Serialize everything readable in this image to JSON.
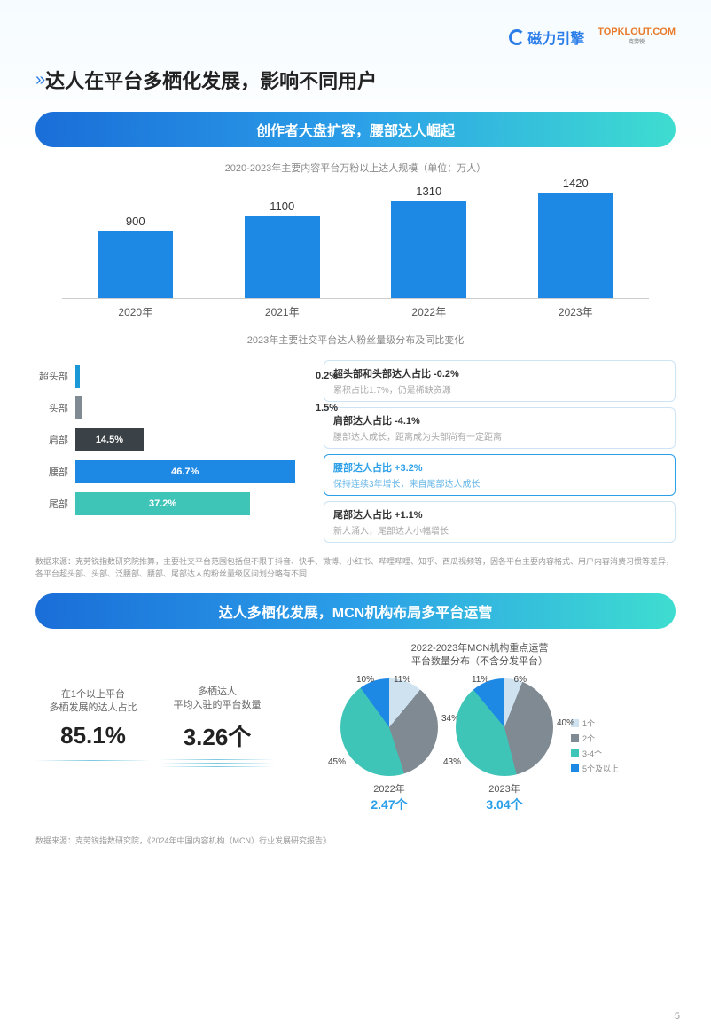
{
  "logos": {
    "cilie": "磁力引擎",
    "topklout": "TOPKLOUT.COM",
    "topklout_sub": "克劳锐"
  },
  "main_title": "达人在平台多栖化发展，影响不同用户",
  "section1": {
    "band": "创作者大盘扩容，腰部达人崛起",
    "bar_subtitle": "2020-2023年主要内容平台万粉以上达人规模（单位：万人）",
    "bars": {
      "categories": [
        "2020年",
        "2021年",
        "2022年",
        "2023年"
      ],
      "values": [
        900,
        1100,
        1310,
        1420
      ],
      "max": 1500,
      "color": "#1e88e5"
    },
    "hbar_subtitle": "2023年主要社交平台达人粉丝量级分布及同比变化",
    "hbars": [
      {
        "cat": "超头部",
        "val": 0.2,
        "label": "0.2%",
        "color": "#1a99d6",
        "small": true
      },
      {
        "cat": "头部",
        "val": 1.5,
        "label": "1.5%",
        "color": "#7f8a93",
        "small": true
      },
      {
        "cat": "肩部",
        "val": 14.5,
        "label": "14.5%",
        "color": "#3a4248",
        "small": false
      },
      {
        "cat": "腰部",
        "val": 46.7,
        "label": "46.7%",
        "color": "#1e88e5",
        "small": false
      },
      {
        "cat": "尾部",
        "val": 37.2,
        "label": "37.2%",
        "color": "#3fc4b8",
        "small": false
      }
    ],
    "hbar_max": 50,
    "info_boxes": [
      {
        "title": "超头部和头部达人占比 -0.2%",
        "sub": "累积占比1.7%，仍是稀缺资源",
        "hl": false
      },
      {
        "title": "肩部达人占比 -4.1%",
        "sub": "腰部达人成长，距离成为头部尚有一定距离",
        "hl": false
      },
      {
        "title": "腰部达人占比 +3.2%",
        "sub": "保持连续3年增长，来自尾部达人成长",
        "hl": true
      },
      {
        "title": "尾部达人占比 +1.1%",
        "sub": "新人涌入，尾部达人小幅增长",
        "hl": false
      }
    ],
    "source1": "数据来源：克劳锐指数研究院推算，主要社交平台范围包括但不限于抖音、快手、微博、小红书、哔哩哔哩、知乎、西瓜视频等，因各平台主要内容格式、用户内容消费习惯等差异，各平台超头部、头部、泛腰部、腰部、尾部达人的粉丝量级区间划分略有不同"
  },
  "section2": {
    "band": "达人多栖化发展，MCN机构布局多平台运营",
    "stat1": {
      "label1": "在1个以上平台",
      "label2": "多栖发展的达人占比",
      "value": "85.1%"
    },
    "stat2": {
      "label1": "多栖达人",
      "label2": "平均入驻的平台数量",
      "value": "3.26个"
    },
    "pie_title1": "2022-2023年MCN机构重点运营",
    "pie_title2": "平台数量分布（不含分发平台）",
    "pies": [
      {
        "year": "2022年",
        "avg": "2.47个",
        "slices": [
          {
            "label": "11%",
            "v": 11,
            "color": "#cfe2ef"
          },
          {
            "label": "34%",
            "v": 34,
            "color": "#7f8a93"
          },
          {
            "label": "45%",
            "v": 45,
            "color": "#3fc4b8"
          },
          {
            "label": "10%",
            "v": 10,
            "color": "#1e88e5"
          }
        ]
      },
      {
        "year": "2023年",
        "avg": "3.04个",
        "slices": [
          {
            "label": "6%",
            "v": 6,
            "color": "#cfe2ef"
          },
          {
            "label": "40%",
            "v": 40,
            "color": "#7f8a93"
          },
          {
            "label": "43%",
            "v": 43,
            "color": "#3fc4b8"
          },
          {
            "label": "11%",
            "v": 11,
            "color": "#1e88e5"
          }
        ]
      }
    ],
    "legend": [
      {
        "label": "1个",
        "color": "#cfe2ef"
      },
      {
        "label": "2个",
        "color": "#7f8a93"
      },
      {
        "label": "3-4个",
        "color": "#3fc4b8"
      },
      {
        "label": "5个及以上",
        "color": "#1e88e5"
      }
    ],
    "source2": "数据来源：克劳锐指数研究院，《2024年中国内容机构（MCN）行业发展研究报告》"
  },
  "page_num": "5"
}
